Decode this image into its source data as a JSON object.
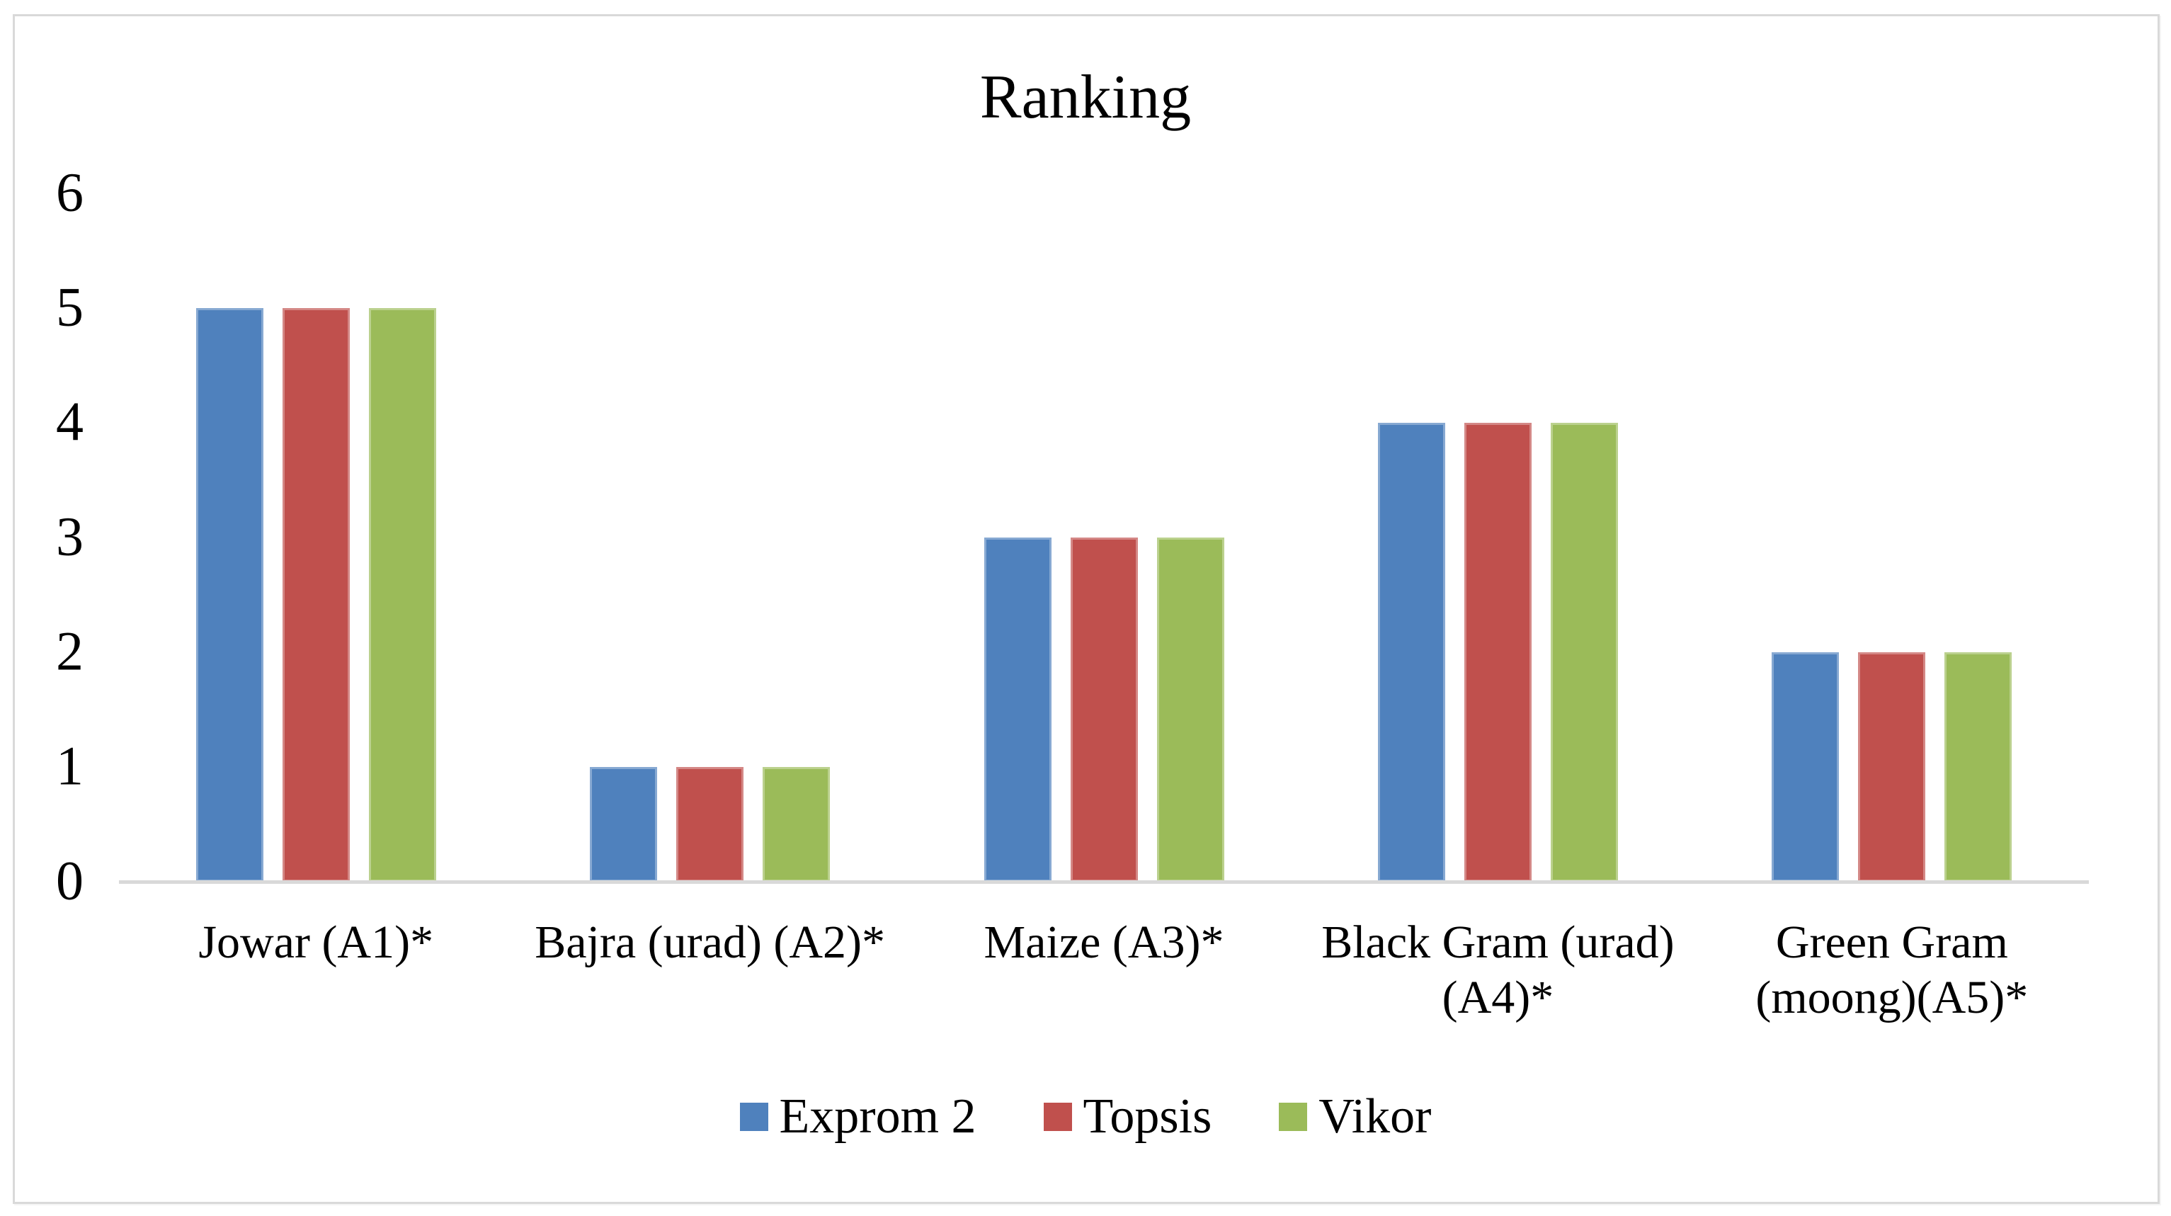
{
  "chart_data": {
    "type": "bar",
    "title": "Ranking",
    "categories": [
      "Jowar (A1)*",
      "Bajra (urad) (A2)*",
      "Maize (A3)*",
      "Black Gram (urad) (A4)*",
      "Green Gram (moong)(A5)*"
    ],
    "series": [
      {
        "name": "Exprom 2",
        "color": "#4F81BD",
        "values": [
          5,
          1,
          3,
          4,
          2
        ]
      },
      {
        "name": "Topsis",
        "color": "#C0504D",
        "values": [
          5,
          1,
          3,
          4,
          2
        ]
      },
      {
        "name": "Vikor",
        "color": "#9BBB59",
        "values": [
          5,
          1,
          3,
          4,
          2
        ]
      }
    ],
    "xlabel": "",
    "ylabel": "",
    "ylim": [
      0,
      6
    ],
    "yticks": [
      0,
      1,
      2,
      3,
      4,
      5,
      6
    ],
    "grid": false,
    "legend_position": "bottom"
  },
  "colors": {
    "axis_line": "#D9D9D9",
    "frame_border": "#D9D9D9",
    "text": "#000000",
    "background": "#FFFFFF"
  }
}
